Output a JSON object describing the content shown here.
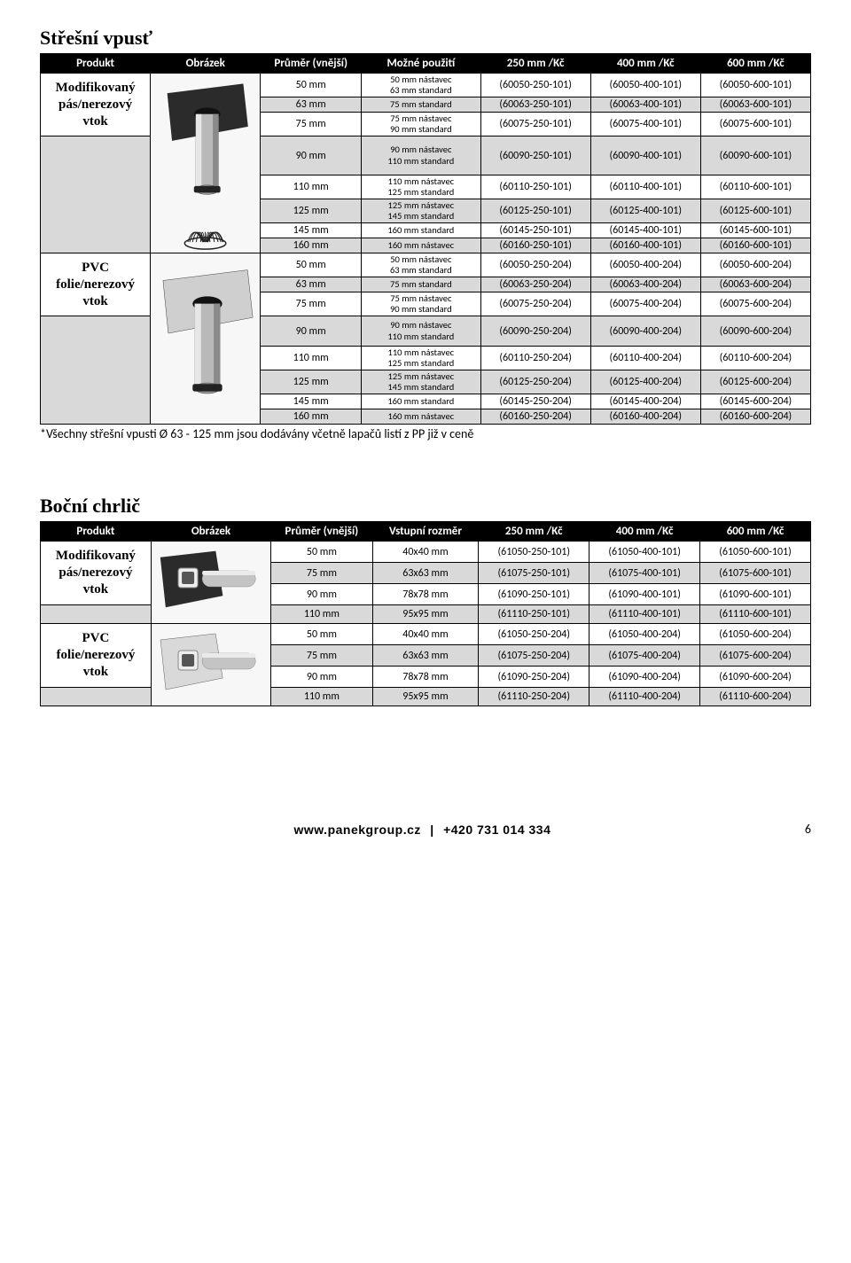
{
  "t1": {
    "title": "Střešní vpusť",
    "headers": [
      "Produkt",
      "Obrázek",
      "Průměr (vnější)",
      "Možné použití",
      "250 mm /Kč",
      "400 mm /Kč",
      "600 mm /Kč"
    ],
    "prod1": "Modifikovaný pás/nerezový vtok",
    "prod2": "PVC folie/nerezový vtok",
    "note": "*Všechny střešní vpusti Ø 63 - 125 mm jsou dodávány včetně lapačů listí z PP již v ceně",
    "rows1": [
      {
        "d": "50 mm",
        "u": "50 mm nástavec\n63 mm standard",
        "c": [
          "(60050-250-101)",
          "(60050-400-101)",
          "(60050-600-101)"
        ]
      },
      {
        "d": "63 mm",
        "u": "75 mm standard",
        "c": [
          "(60063-250-101)",
          "(60063-400-101)",
          "(60063-600-101)"
        ],
        "band": true
      },
      {
        "d": "75 mm",
        "u": "75 mm nástavec\n90 mm standard",
        "c": [
          "(60075-250-101)",
          "(60075-400-101)",
          "(60075-600-101)"
        ]
      },
      {
        "d": "90 mm",
        "u": "90 mm nástavec\n110 mm standard",
        "c": [
          "(60090-250-101)",
          "(60090-400-101)",
          "(60090-600-101)"
        ],
        "band": true
      },
      {
        "d": "110 mm",
        "u": "110 mm nástavec\n125 mm standard",
        "c": [
          "(60110-250-101)",
          "(60110-400-101)",
          "(60110-600-101)"
        ]
      },
      {
        "d": "125 mm",
        "u": "125 mm nástavec\n145 mm standard",
        "c": [
          "(60125-250-101)",
          "(60125-400-101)",
          "(60125-600-101)"
        ],
        "band": true
      },
      {
        "d": "145 mm",
        "u": "160 mm standard",
        "c": [
          "(60145-250-101)",
          "(60145-400-101)",
          "(60145-600-101)"
        ]
      },
      {
        "d": "160 mm",
        "u": "160 mm nástavec",
        "c": [
          "(60160-250-101)",
          "(60160-400-101)",
          "(60160-600-101)"
        ],
        "band": true
      }
    ],
    "rows2": [
      {
        "d": "50 mm",
        "u": "50 mm nástavec\n63 mm standard",
        "c": [
          "(60050-250-204)",
          "(60050-400-204)",
          "(60050-600-204)"
        ]
      },
      {
        "d": "63 mm",
        "u": "75 mm standard",
        "c": [
          "(60063-250-204)",
          "(60063-400-204)",
          "(60063-600-204)"
        ],
        "band": true
      },
      {
        "d": "75 mm",
        "u": "75 mm nástavec\n90 mm standard",
        "c": [
          "(60075-250-204)",
          "(60075-400-204)",
          "(60075-600-204)"
        ]
      },
      {
        "d": "90 mm",
        "u": "90 mm nástavec\n110 mm standard",
        "c": [
          "(60090-250-204)",
          "(60090-400-204)",
          "(60090-600-204)"
        ],
        "band": true
      },
      {
        "d": "110 mm",
        "u": "110 mm nástavec\n125 mm standard",
        "c": [
          "(60110-250-204)",
          "(60110-400-204)",
          "(60110-600-204)"
        ]
      },
      {
        "d": "125 mm",
        "u": "125 mm nástavec\n145 mm standard",
        "c": [
          "(60125-250-204)",
          "(60125-400-204)",
          "(60125-600-204)"
        ],
        "band": true
      },
      {
        "d": "145 mm",
        "u": "160 mm standard",
        "c": [
          "(60145-250-204)",
          "(60145-400-204)",
          "(60145-600-204)"
        ]
      },
      {
        "d": "160 mm",
        "u": "160 mm nástavec",
        "c": [
          "(60160-250-204)",
          "(60160-400-204)",
          "(60160-600-204)"
        ],
        "band": true
      }
    ]
  },
  "t2": {
    "title": "Boční chrlič",
    "headers": [
      "Produkt",
      "Obrázek",
      "Průměr (vnější)",
      "Vstupní rozměr",
      "250 mm /Kč",
      "400 mm /Kč",
      "600 mm /Kč"
    ],
    "prod1": "Modifikovaný pás/nerezový vtok",
    "prod2": "PVC folie/nerezový vtok",
    "rows1": [
      {
        "d": "50 mm",
        "u": "40x40 mm",
        "c": [
          "(61050-250-101)",
          "(61050-400-101)",
          "(61050-600-101)"
        ]
      },
      {
        "d": "75 mm",
        "u": "63x63 mm",
        "c": [
          "(61075-250-101)",
          "(61075-400-101)",
          "(61075-600-101)"
        ],
        "band": true
      },
      {
        "d": "90 mm",
        "u": "78x78 mm",
        "c": [
          "(61090-250-101)",
          "(61090-400-101)",
          "(61090-600-101)"
        ]
      },
      {
        "d": "110 mm",
        "u": "95x95 mm",
        "c": [
          "(61110-250-101)",
          "(61110-400-101)",
          "(61110-600-101)"
        ],
        "band": true
      }
    ],
    "rows2": [
      {
        "d": "50 mm",
        "u": "40x40 mm",
        "c": [
          "(61050-250-204)",
          "(61050-400-204)",
          "(61050-600-204)"
        ]
      },
      {
        "d": "75 mm",
        "u": "63x63 mm",
        "c": [
          "(61075-250-204)",
          "(61075-400-204)",
          "(61075-600-204)"
        ],
        "band": true
      },
      {
        "d": "90 mm",
        "u": "78x78 mm",
        "c": [
          "(61090-250-204)",
          "(61090-400-204)",
          "(61090-600-204)"
        ]
      },
      {
        "d": "110 mm",
        "u": "95x95 mm",
        "c": [
          "(61110-250-204)",
          "(61110-400-204)",
          "(61110-600-204)"
        ],
        "band": true
      }
    ]
  },
  "footer": {
    "url": "www.panekgroup.cz",
    "phone": "+420 731 014 334",
    "page": "6"
  }
}
